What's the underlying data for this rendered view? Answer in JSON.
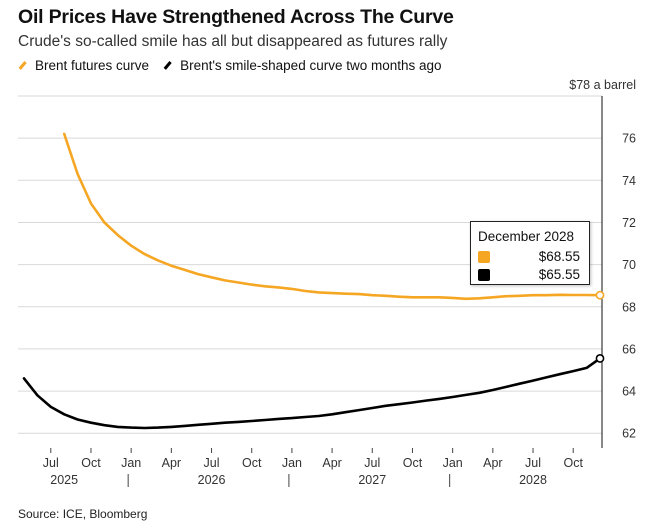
{
  "title": "Oil Prices Have Strengthened Across The Curve",
  "subtitle": "Crude's so-called smile has all but disappeared as futures rally",
  "source": "Source: ICE, Bloomberg",
  "colors": {
    "brent": "#f5a623",
    "prior": "#000000",
    "grid": "#d9d9d9"
  },
  "tooltip": {
    "title": "December 2028",
    "rows": [
      {
        "color": "#f5a623",
        "value": "$68.55"
      },
      {
        "color": "#000000",
        "value": "$65.55"
      }
    ]
  },
  "chart_data": {
    "type": "line",
    "title": "Oil Prices Have Strengthened Across The Curve",
    "subtitle": "Crude's so-called smile has all but disappeared as futures rally",
    "ylabel": "$78 a barrel",
    "ylim": [
      61.3,
      78
    ],
    "yticks": [
      62,
      64,
      66,
      68,
      70,
      72,
      74,
      76
    ],
    "x_start": "2025-05",
    "x_end": "2028-12",
    "xticks": [
      {
        "x": "2025-07",
        "label": "Jul"
      },
      {
        "x": "2025-10",
        "label": "Oct"
      },
      {
        "x": "2026-01",
        "label": "Jan"
      },
      {
        "x": "2026-04",
        "label": "Apr"
      },
      {
        "x": "2026-07",
        "label": "Jul"
      },
      {
        "x": "2026-10",
        "label": "Oct"
      },
      {
        "x": "2027-01",
        "label": "Jan"
      },
      {
        "x": "2027-04",
        "label": "Apr"
      },
      {
        "x": "2027-07",
        "label": "Jul"
      },
      {
        "x": "2027-10",
        "label": "Oct"
      },
      {
        "x": "2028-01",
        "label": "Jan"
      },
      {
        "x": "2028-04",
        "label": "Apr"
      },
      {
        "x": "2028-07",
        "label": "Jul"
      },
      {
        "x": "2028-10",
        "label": "Oct"
      }
    ],
    "years": [
      {
        "x": "2025-08",
        "label": "2025"
      },
      {
        "x": "2026-07",
        "label": "2026"
      },
      {
        "x": "2027-07",
        "label": "2027"
      },
      {
        "x": "2028-07",
        "label": "2028"
      }
    ],
    "year_separators": [
      "2026-01",
      "2027-01",
      "2028-01"
    ],
    "grid": true,
    "legend_position": "top-left",
    "series": [
      {
        "name": "Brent futures curve",
        "color": "#f5a623",
        "x": [
          "2025-08",
          "2025-09",
          "2025-10",
          "2025-11",
          "2025-12",
          "2026-01",
          "2026-02",
          "2026-03",
          "2026-04",
          "2026-05",
          "2026-06",
          "2026-07",
          "2026-08",
          "2026-09",
          "2026-10",
          "2026-11",
          "2026-12",
          "2027-01",
          "2027-02",
          "2027-03",
          "2027-04",
          "2027-05",
          "2027-06",
          "2027-07",
          "2027-08",
          "2027-09",
          "2027-10",
          "2027-11",
          "2027-12",
          "2028-01",
          "2028-02",
          "2028-03",
          "2028-04",
          "2028-05",
          "2028-06",
          "2028-07",
          "2028-08",
          "2028-09",
          "2028-10",
          "2028-11",
          "2028-12"
        ],
        "y": [
          76.2,
          74.3,
          72.9,
          72.0,
          71.4,
          70.9,
          70.5,
          70.2,
          69.95,
          69.75,
          69.55,
          69.4,
          69.25,
          69.15,
          69.05,
          68.97,
          68.92,
          68.85,
          68.75,
          68.68,
          68.65,
          68.62,
          68.6,
          68.55,
          68.52,
          68.48,
          68.45,
          68.45,
          68.45,
          68.42,
          68.38,
          68.4,
          68.45,
          68.5,
          68.52,
          68.55,
          68.55,
          68.57,
          68.56,
          68.56,
          68.55
        ]
      },
      {
        "name": "Brent's smile-shaped curve two months ago",
        "color": "#000000",
        "x": [
          "2025-05",
          "2025-06",
          "2025-07",
          "2025-08",
          "2025-09",
          "2025-10",
          "2025-11",
          "2025-12",
          "2026-01",
          "2026-02",
          "2026-03",
          "2026-04",
          "2026-05",
          "2026-06",
          "2026-07",
          "2026-08",
          "2026-09",
          "2026-10",
          "2026-11",
          "2026-12",
          "2027-01",
          "2027-02",
          "2027-03",
          "2027-04",
          "2027-05",
          "2027-06",
          "2027-07",
          "2027-08",
          "2027-09",
          "2027-10",
          "2027-11",
          "2027-12",
          "2028-01",
          "2028-02",
          "2028-03",
          "2028-04",
          "2028-05",
          "2028-06",
          "2028-07",
          "2028-08",
          "2028-09",
          "2028-10",
          "2028-11",
          "2028-12"
        ],
        "y": [
          64.6,
          63.8,
          63.25,
          62.9,
          62.65,
          62.5,
          62.38,
          62.3,
          62.27,
          62.25,
          62.27,
          62.3,
          62.35,
          62.4,
          62.45,
          62.5,
          62.54,
          62.58,
          62.63,
          62.68,
          62.72,
          62.77,
          62.82,
          62.9,
          63.0,
          63.1,
          63.2,
          63.3,
          63.38,
          63.46,
          63.55,
          63.63,
          63.72,
          63.82,
          63.92,
          64.05,
          64.2,
          64.35,
          64.5,
          64.65,
          64.8,
          64.95,
          65.1,
          65.55
        ]
      }
    ]
  }
}
